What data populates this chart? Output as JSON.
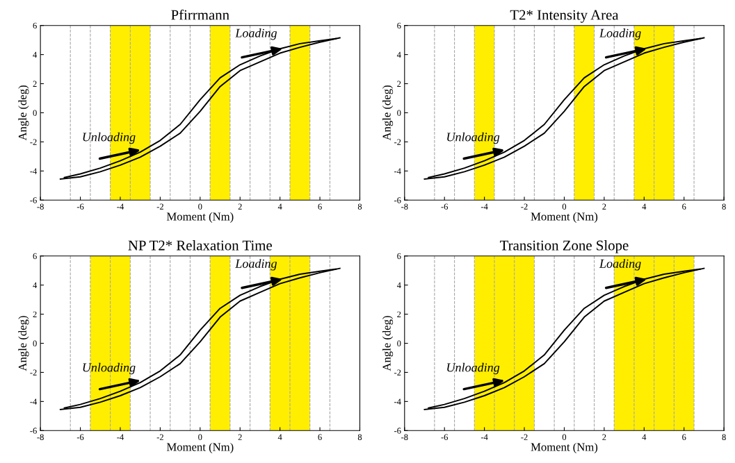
{
  "chart_data": [
    {
      "type": "line",
      "title": "Pfirrmann",
      "xlabel": "Moment (Nm)",
      "ylabel": "Angle (deg)",
      "x": [
        -7,
        -6,
        -5,
        -4,
        -3,
        -2,
        -1,
        0,
        1,
        2,
        3,
        4,
        5,
        6,
        7
      ],
      "series": [
        {
          "color": "#000000",
          "values": [
            -4.55,
            -4.4,
            -4.05,
            -3.6,
            -3.05,
            -2.3,
            -1.4,
            0.1,
            1.8,
            2.9,
            3.5,
            4.1,
            4.5,
            4.85,
            5.15
          ]
        },
        {
          "color": "#000000",
          "x": [
            -6.8,
            -6,
            -5,
            -4,
            -3,
            -2,
            -1,
            0,
            1,
            2,
            3,
            4,
            5,
            6,
            6.8
          ],
          "values": [
            -4.45,
            -4.2,
            -3.8,
            -3.3,
            -2.7,
            -1.9,
            -0.8,
            0.9,
            2.4,
            3.3,
            3.9,
            4.4,
            4.75,
            4.95,
            5.1
          ]
        }
      ],
      "xlim": [
        -8,
        8
      ],
      "ylim": [
        -6,
        6
      ],
      "xticks": [
        -8,
        -6,
        -4,
        -2,
        0,
        2,
        4,
        6,
        8
      ],
      "yticks": [
        -6,
        -4,
        -2,
        0,
        2,
        4,
        6
      ],
      "line_style": "solid",
      "grid": false,
      "legend": false,
      "ref_lines": [
        {
          "axis": "x",
          "value": -6.5,
          "color": "#a6a6a6",
          "line_style": "dashed"
        },
        {
          "axis": "x",
          "value": -5.5,
          "color": "#a6a6a6",
          "line_style": "dashed"
        },
        {
          "axis": "x",
          "value": -4.5,
          "color": "#a6a6a6",
          "line_style": "dashed"
        },
        {
          "axis": "x",
          "value": -3.5,
          "color": "#a6a6a6",
          "line_style": "dashed"
        },
        {
          "axis": "x",
          "value": -2.5,
          "color": "#a6a6a6",
          "line_style": "dashed"
        },
        {
          "axis": "x",
          "value": -1.5,
          "color": "#a6a6a6",
          "line_style": "dashed"
        },
        {
          "axis": "x",
          "value": -0.5,
          "color": "#a6a6a6",
          "line_style": "dashed"
        },
        {
          "axis": "x",
          "value": 0.5,
          "color": "#a6a6a6",
          "line_style": "dashed"
        },
        {
          "axis": "x",
          "value": 1.5,
          "color": "#a6a6a6",
          "line_style": "dashed"
        },
        {
          "axis": "x",
          "value": 2.5,
          "color": "#a6a6a6",
          "line_style": "dashed"
        },
        {
          "axis": "x",
          "value": 3.5,
          "color": "#a6a6a6",
          "line_style": "dashed"
        },
        {
          "axis": "x",
          "value": 4.5,
          "color": "#a6a6a6",
          "line_style": "dashed"
        },
        {
          "axis": "x",
          "value": 5.5,
          "color": "#a6a6a6",
          "line_style": "dashed"
        },
        {
          "axis": "x",
          "value": 6.5,
          "color": "#a6a6a6",
          "line_style": "dashed"
        }
      ],
      "bands": [
        {
          "axis": "x",
          "from": -4.5,
          "to": -2.5,
          "color": "#ffee00"
        },
        {
          "axis": "x",
          "from": 0.5,
          "to": 1.5,
          "color": "#ffee00"
        },
        {
          "axis": "x",
          "from": 4.5,
          "to": 5.5,
          "color": "#ffee00"
        }
      ],
      "annotations": [
        "Loading",
        "Unloading"
      ]
    },
    {
      "type": "line",
      "title": "T2* Intensity Area",
      "xlabel": "Moment (Nm)",
      "ylabel": "Angle (deg)",
      "x": [
        -7,
        -6,
        -5,
        -4,
        -3,
        -2,
        -1,
        0,
        1,
        2,
        3,
        4,
        5,
        6,
        7
      ],
      "series": [
        {
          "color": "#000000",
          "values": [
            -4.55,
            -4.4,
            -4.05,
            -3.6,
            -3.05,
            -2.3,
            -1.4,
            0.1,
            1.8,
            2.9,
            3.5,
            4.1,
            4.5,
            4.85,
            5.15
          ]
        },
        {
          "color": "#000000",
          "x": [
            -6.8,
            -6,
            -5,
            -4,
            -3,
            -2,
            -1,
            0,
            1,
            2,
            3,
            4,
            5,
            6,
            6.8
          ],
          "values": [
            -4.45,
            -4.2,
            -3.8,
            -3.3,
            -2.7,
            -1.9,
            -0.8,
            0.9,
            2.4,
            3.3,
            3.9,
            4.4,
            4.75,
            4.95,
            5.1
          ]
        }
      ],
      "xlim": [
        -8,
        8
      ],
      "ylim": [
        -6,
        6
      ],
      "xticks": [
        -8,
        -6,
        -4,
        -2,
        0,
        2,
        4,
        6,
        8
      ],
      "yticks": [
        -6,
        -4,
        -2,
        0,
        2,
        4,
        6
      ],
      "line_style": "solid",
      "grid": false,
      "legend": false,
      "ref_lines": [
        {
          "axis": "x",
          "value": -6.5,
          "color": "#a6a6a6",
          "line_style": "dashed"
        },
        {
          "axis": "x",
          "value": -5.5,
          "color": "#a6a6a6",
          "line_style": "dashed"
        },
        {
          "axis": "x",
          "value": -4.5,
          "color": "#a6a6a6",
          "line_style": "dashed"
        },
        {
          "axis": "x",
          "value": -3.5,
          "color": "#a6a6a6",
          "line_style": "dashed"
        },
        {
          "axis": "x",
          "value": -2.5,
          "color": "#a6a6a6",
          "line_style": "dashed"
        },
        {
          "axis": "x",
          "value": -1.5,
          "color": "#a6a6a6",
          "line_style": "dashed"
        },
        {
          "axis": "x",
          "value": -0.5,
          "color": "#a6a6a6",
          "line_style": "dashed"
        },
        {
          "axis": "x",
          "value": 0.5,
          "color": "#a6a6a6",
          "line_style": "dashed"
        },
        {
          "axis": "x",
          "value": 1.5,
          "color": "#a6a6a6",
          "line_style": "dashed"
        },
        {
          "axis": "x",
          "value": 2.5,
          "color": "#a6a6a6",
          "line_style": "dashed"
        },
        {
          "axis": "x",
          "value": 3.5,
          "color": "#a6a6a6",
          "line_style": "dashed"
        },
        {
          "axis": "x",
          "value": 4.5,
          "color": "#a6a6a6",
          "line_style": "dashed"
        },
        {
          "axis": "x",
          "value": 5.5,
          "color": "#a6a6a6",
          "line_style": "dashed"
        },
        {
          "axis": "x",
          "value": 6.5,
          "color": "#a6a6a6",
          "line_style": "dashed"
        }
      ],
      "bands": [
        {
          "axis": "x",
          "from": -4.5,
          "to": -3.5,
          "color": "#ffee00"
        },
        {
          "axis": "x",
          "from": 0.5,
          "to": 1.5,
          "color": "#ffee00"
        },
        {
          "axis": "x",
          "from": 3.5,
          "to": 5.5,
          "color": "#ffee00"
        }
      ],
      "annotations": [
        "Loading",
        "Unloading"
      ]
    },
    {
      "type": "line",
      "title": "NP T2* Relaxation Time",
      "xlabel": "Moment (Nm)",
      "ylabel": "Angle (deg)",
      "x": [
        -7,
        -6,
        -5,
        -4,
        -3,
        -2,
        -1,
        0,
        1,
        2,
        3,
        4,
        5,
        6,
        7
      ],
      "series": [
        {
          "color": "#000000",
          "values": [
            -4.55,
            -4.4,
            -4.05,
            -3.6,
            -3.05,
            -2.3,
            -1.4,
            0.1,
            1.8,
            2.9,
            3.5,
            4.1,
            4.5,
            4.85,
            5.15
          ]
        },
        {
          "color": "#000000",
          "x": [
            -6.8,
            -6,
            -5,
            -4,
            -3,
            -2,
            -1,
            0,
            1,
            2,
            3,
            4,
            5,
            6,
            6.8
          ],
          "values": [
            -4.45,
            -4.2,
            -3.8,
            -3.3,
            -2.7,
            -1.9,
            -0.8,
            0.9,
            2.4,
            3.3,
            3.9,
            4.4,
            4.75,
            4.95,
            5.1
          ]
        }
      ],
      "xlim": [
        -8,
        8
      ],
      "ylim": [
        -6,
        6
      ],
      "xticks": [
        -8,
        -6,
        -4,
        -2,
        0,
        2,
        4,
        6,
        8
      ],
      "yticks": [
        -6,
        -4,
        -2,
        0,
        2,
        4,
        6
      ],
      "line_style": "solid",
      "grid": false,
      "legend": false,
      "ref_lines": [
        {
          "axis": "x",
          "value": -6.5,
          "color": "#a6a6a6",
          "line_style": "dashed"
        },
        {
          "axis": "x",
          "value": -5.5,
          "color": "#a6a6a6",
          "line_style": "dashed"
        },
        {
          "axis": "x",
          "value": -4.5,
          "color": "#a6a6a6",
          "line_style": "dashed"
        },
        {
          "axis": "x",
          "value": -3.5,
          "color": "#a6a6a6",
          "line_style": "dashed"
        },
        {
          "axis": "x",
          "value": -2.5,
          "color": "#a6a6a6",
          "line_style": "dashed"
        },
        {
          "axis": "x",
          "value": -1.5,
          "color": "#a6a6a6",
          "line_style": "dashed"
        },
        {
          "axis": "x",
          "value": -0.5,
          "color": "#a6a6a6",
          "line_style": "dashed"
        },
        {
          "axis": "x",
          "value": 0.5,
          "color": "#a6a6a6",
          "line_style": "dashed"
        },
        {
          "axis": "x",
          "value": 1.5,
          "color": "#a6a6a6",
          "line_style": "dashed"
        },
        {
          "axis": "x",
          "value": 2.5,
          "color": "#a6a6a6",
          "line_style": "dashed"
        },
        {
          "axis": "x",
          "value": 3.5,
          "color": "#a6a6a6",
          "line_style": "dashed"
        },
        {
          "axis": "x",
          "value": 4.5,
          "color": "#a6a6a6",
          "line_style": "dashed"
        },
        {
          "axis": "x",
          "value": 5.5,
          "color": "#a6a6a6",
          "line_style": "dashed"
        },
        {
          "axis": "x",
          "value": 6.5,
          "color": "#a6a6a6",
          "line_style": "dashed"
        }
      ],
      "bands": [
        {
          "axis": "x",
          "from": -5.5,
          "to": -3.5,
          "color": "#ffee00"
        },
        {
          "axis": "x",
          "from": 0.5,
          "to": 1.5,
          "color": "#ffee00"
        },
        {
          "axis": "x",
          "from": 3.5,
          "to": 5.5,
          "color": "#ffee00"
        }
      ],
      "annotations": [
        "Loading",
        "Unloading"
      ]
    },
    {
      "type": "line",
      "title": "Transition Zone Slope",
      "xlabel": "Moment (Nm)",
      "ylabel": "Angle (deg)",
      "x": [
        -7,
        -6,
        -5,
        -4,
        -3,
        -2,
        -1,
        0,
        1,
        2,
        3,
        4,
        5,
        6,
        7
      ],
      "series": [
        {
          "color": "#000000",
          "values": [
            -4.55,
            -4.4,
            -4.05,
            -3.6,
            -3.05,
            -2.3,
            -1.4,
            0.1,
            1.8,
            2.9,
            3.5,
            4.1,
            4.5,
            4.85,
            5.15
          ]
        },
        {
          "color": "#000000",
          "x": [
            -6.8,
            -6,
            -5,
            -4,
            -3,
            -2,
            -1,
            0,
            1,
            2,
            3,
            4,
            5,
            6,
            6.8
          ],
          "values": [
            -4.45,
            -4.2,
            -3.8,
            -3.3,
            -2.7,
            -1.9,
            -0.8,
            0.9,
            2.4,
            3.3,
            3.9,
            4.4,
            4.75,
            4.95,
            5.1
          ]
        }
      ],
      "xlim": [
        -8,
        8
      ],
      "ylim": [
        -6,
        6
      ],
      "xticks": [
        -8,
        -6,
        -4,
        -2,
        0,
        2,
        4,
        6,
        8
      ],
      "yticks": [
        -6,
        -4,
        -2,
        0,
        2,
        4,
        6
      ],
      "line_style": "solid",
      "grid": false,
      "legend": false,
      "ref_lines": [
        {
          "axis": "x",
          "value": -6.5,
          "color": "#a6a6a6",
          "line_style": "dashed"
        },
        {
          "axis": "x",
          "value": -5.5,
          "color": "#a6a6a6",
          "line_style": "dashed"
        },
        {
          "axis": "x",
          "value": -4.5,
          "color": "#a6a6a6",
          "line_style": "dashed"
        },
        {
          "axis": "x",
          "value": -3.5,
          "color": "#a6a6a6",
          "line_style": "dashed"
        },
        {
          "axis": "x",
          "value": -2.5,
          "color": "#a6a6a6",
          "line_style": "dashed"
        },
        {
          "axis": "x",
          "value": -1.5,
          "color": "#a6a6a6",
          "line_style": "dashed"
        },
        {
          "axis": "x",
          "value": -0.5,
          "color": "#a6a6a6",
          "line_style": "dashed"
        },
        {
          "axis": "x",
          "value": 0.5,
          "color": "#a6a6a6",
          "line_style": "dashed"
        },
        {
          "axis": "x",
          "value": 1.5,
          "color": "#a6a6a6",
          "line_style": "dashed"
        },
        {
          "axis": "x",
          "value": 2.5,
          "color": "#a6a6a6",
          "line_style": "dashed"
        },
        {
          "axis": "x",
          "value": 3.5,
          "color": "#a6a6a6",
          "line_style": "dashed"
        },
        {
          "axis": "x",
          "value": 4.5,
          "color": "#a6a6a6",
          "line_style": "dashed"
        },
        {
          "axis": "x",
          "value": 5.5,
          "color": "#a6a6a6",
          "line_style": "dashed"
        },
        {
          "axis": "x",
          "value": 6.5,
          "color": "#a6a6a6",
          "line_style": "dashed"
        }
      ],
      "bands": [
        {
          "axis": "x",
          "from": -4.5,
          "to": -1.5,
          "color": "#ffee00"
        },
        {
          "axis": "x",
          "from": 2.5,
          "to": 6.5,
          "color": "#ffee00"
        }
      ],
      "annotations": [
        "Loading",
        "Unloading"
      ]
    }
  ]
}
